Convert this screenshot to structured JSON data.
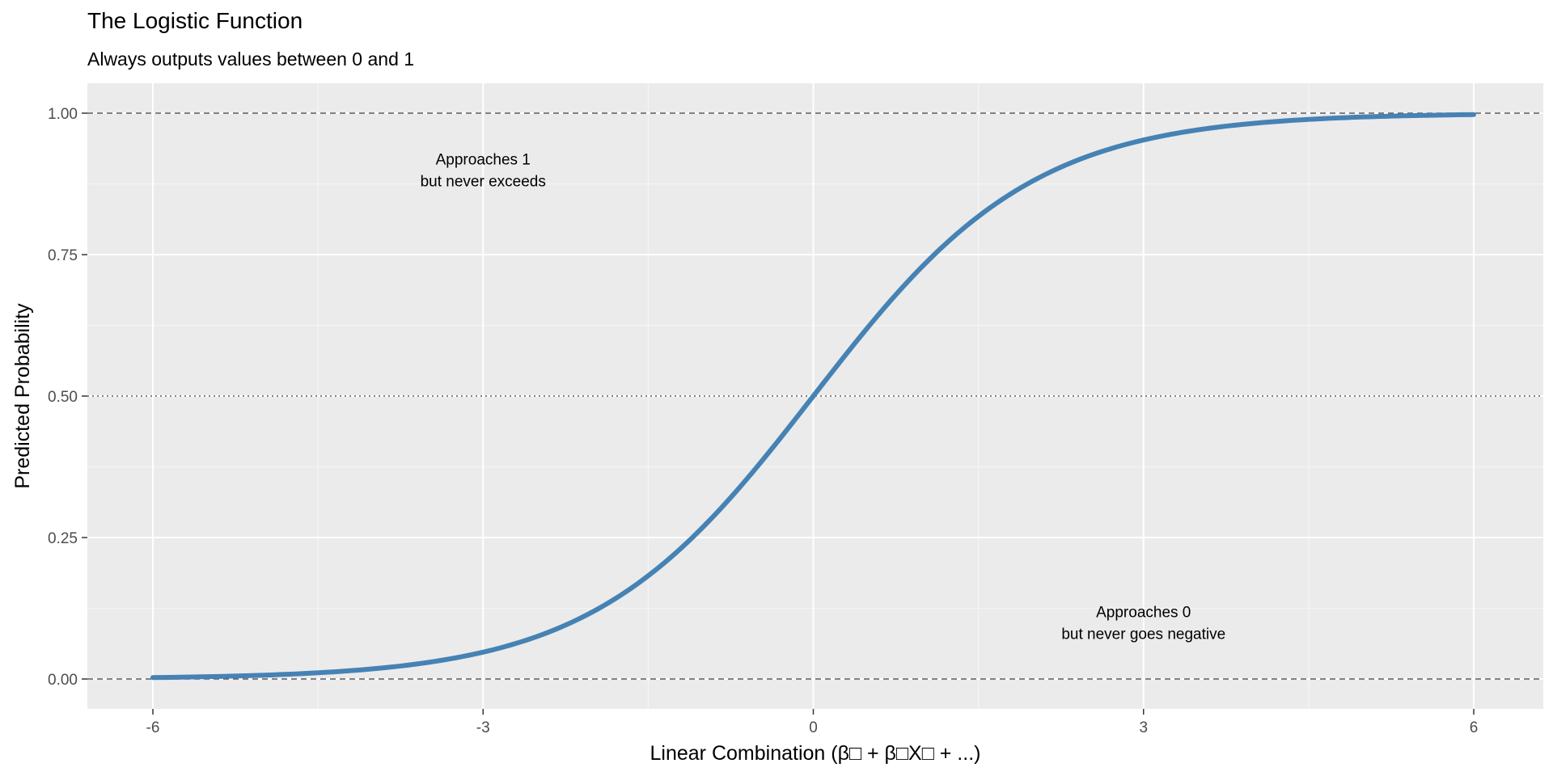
{
  "chart_data": {
    "type": "line",
    "title": "The Logistic Function",
    "subtitle": "Always outputs values between 0 and 1",
    "xlabel": "Linear Combination (β□ + β□X□ + ...)",
    "ylabel": "Predicted Probability",
    "xlim": [
      -6.6,
      6.6
    ],
    "ylim": [
      -0.05,
      1.05
    ],
    "x_ticks": [
      -6,
      -3,
      0,
      3,
      6
    ],
    "x_tick_labels": [
      "-6",
      "-3",
      "0",
      "3",
      "6"
    ],
    "y_ticks": [
      0,
      0.25,
      0.5,
      0.75,
      1
    ],
    "y_tick_labels": [
      "0.00",
      "0.25",
      "0.50",
      "0.75",
      "1.00"
    ],
    "grid": true,
    "series": [
      {
        "color": "#4682b4",
        "x": [
          -6,
          -5.5,
          -5,
          -4.5,
          -4,
          -3.5,
          -3,
          -2.5,
          -2,
          -1.5,
          -1,
          -0.5,
          0,
          0.5,
          1,
          1.5,
          2,
          2.5,
          3,
          3.5,
          4,
          4.5,
          5,
          5.5,
          6
        ],
        "y": [
          0.0025,
          0.0041,
          0.0067,
          0.011,
          0.018,
          0.0293,
          0.0474,
          0.0759,
          0.1192,
          0.1824,
          0.2689,
          0.3775,
          0.5,
          0.6225,
          0.7311,
          0.8176,
          0.8808,
          0.9241,
          0.9526,
          0.9707,
          0.982,
          0.989,
          0.9933,
          0.9959,
          0.9975
        ]
      }
    ],
    "reference_lines": [
      {
        "y": 1,
        "style": "dashed"
      },
      {
        "y": 0,
        "style": "dashed"
      },
      {
        "y": 0.5,
        "style": "dotted"
      }
    ],
    "annotations": [
      {
        "x": -3,
        "y": 0.9,
        "lines": [
          "Approaches 1",
          "but never exceeds"
        ]
      },
      {
        "x": 3,
        "y": 0.1,
        "lines": [
          "Approaches 0",
          "but never goes negative"
        ]
      }
    ],
    "colors": {
      "panel": "#ebebeb",
      "grid_major": "#ffffff",
      "grid_minor": "#f5f5f5",
      "reference": "#595959",
      "line": "#4682b4"
    }
  }
}
